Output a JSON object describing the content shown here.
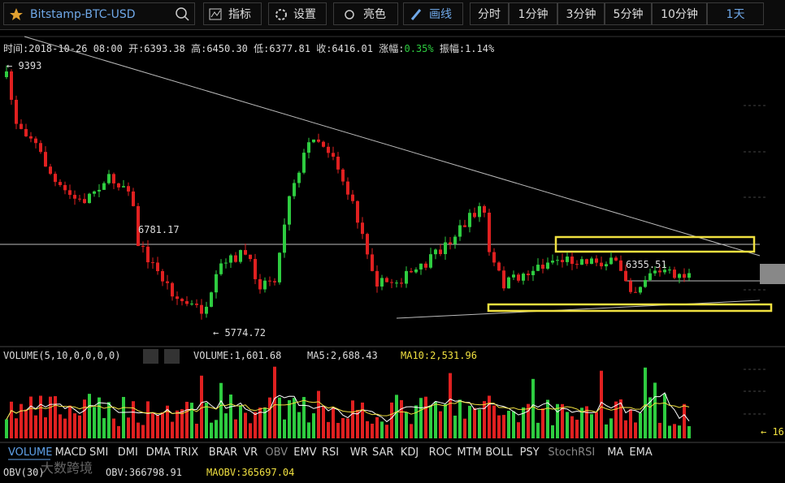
{
  "toolbar": {
    "symbol": "Bitstamp-BTC-USD",
    "buttons": [
      "指标",
      "设置",
      "亮色",
      "画线"
    ],
    "periods": [
      "分时",
      "1分钟",
      "3分钟",
      "5分钟",
      "10分钟",
      "1天"
    ]
  },
  "info": {
    "time": "时间:2018-10-26 08:00",
    "open": "开:6393.38",
    "high": "高:6450.30",
    "low": "低:6377.81",
    "close": "收:6416.01",
    "change_label": "涨幅:",
    "change": "0.35%",
    "amplitude": "振幅:1.14%"
  },
  "annotations": {
    "max": "← 9393",
    "level": "6781.17",
    "last": "6355.51",
    "min": "← 5774.72"
  },
  "volume": {
    "title": "VOLUME(5,10,0,0,0,0)",
    "volume": "VOLUME:1,601.68",
    "ma5": "MA5:2,688.43",
    "ma10": "MA10:2,531.96",
    "right": "← 16"
  },
  "tabs": [
    "VOLUME",
    "MACD",
    "SMI",
    "DMI",
    "DMA",
    "TRIX",
    "BRAR",
    "VR",
    "OBV",
    "EMV",
    "RSI",
    "WR",
    "SAR",
    "KDJ",
    "ROC",
    "MTM",
    "BOLL",
    "PSY",
    "StochRSI",
    "MA",
    "EMA"
  ],
  "obv": {
    "title": "OBV(30)",
    "obv": "OBV:366798.91",
    "maobv": "MAOBV:365697.04",
    "watermark": "大数跨境"
  }
}
